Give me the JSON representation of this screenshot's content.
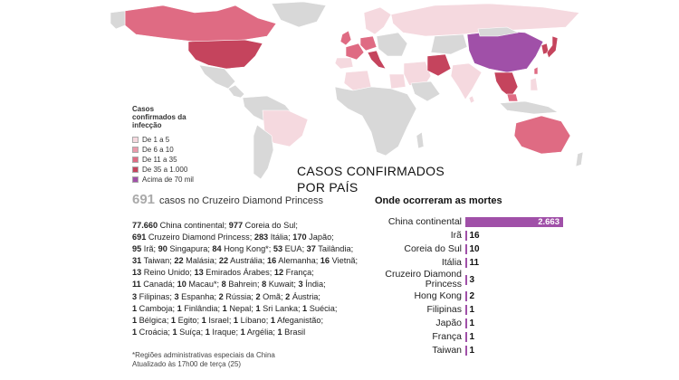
{
  "colors": {
    "ocean": "#ffffff",
    "land_no_cases": "#d8d8d8",
    "border": "#ffffff",
    "c1_5": "#f5d9df",
    "c6_10": "#ea9aab",
    "c11_35": "#df6b83",
    "c35_1000": "#c5445d",
    "c70k": "#a050a8"
  },
  "legend": {
    "title": "Casos confirmados da infecção",
    "items": [
      {
        "label": "De 1 a 5",
        "color": "#f5d9df"
      },
      {
        "label": "De 6 a 10",
        "color": "#ea9aab"
      },
      {
        "label": "De 11 a 35",
        "color": "#df6b83"
      },
      {
        "label": "De 35 a 1.000",
        "color": "#c5445d"
      },
      {
        "label": "Acima de 70 mil",
        "color": "#a050a8"
      }
    ]
  },
  "heading": {
    "line1": "CASOS CONFIRMADOS",
    "line2": "POR PAÍS"
  },
  "cruise": {
    "number": "691",
    "label": "casos no Cruzeiro Diamond Princess"
  },
  "cases_list": [
    {
      "n": "77.660",
      "c": "China continental"
    },
    {
      "n": "977",
      "c": "Coreia do Sul"
    },
    {
      "n": "691",
      "c": "Cruzeiro Diamond Princess"
    },
    {
      "n": "283",
      "c": "Itália"
    },
    {
      "n": "170",
      "c": "Japão"
    },
    {
      "n": "95",
      "c": "Irã"
    },
    {
      "n": "90",
      "c": "Singapura"
    },
    {
      "n": "84",
      "c": "Hong Kong*"
    },
    {
      "n": "53",
      "c": "EUA"
    },
    {
      "n": "37",
      "c": "Tailândia"
    },
    {
      "n": "31",
      "c": "Taiwan"
    },
    {
      "n": "22",
      "c": "Malásia"
    },
    {
      "n": "22",
      "c": "Austrália"
    },
    {
      "n": "16",
      "c": "Alemanha"
    },
    {
      "n": "16",
      "c": "Vietnã"
    },
    {
      "n": "13",
      "c": "Reino Unido"
    },
    {
      "n": "13",
      "c": "Emirados Árabes"
    },
    {
      "n": "12",
      "c": "França"
    },
    {
      "n": "11",
      "c": "Canadá"
    },
    {
      "n": "10",
      "c": "Macau*"
    },
    {
      "n": "8",
      "c": "Bahrein"
    },
    {
      "n": "8",
      "c": "Kuwait"
    },
    {
      "n": "3",
      "c": "Índia"
    },
    {
      "n": "3",
      "c": "Filipinas"
    },
    {
      "n": "3",
      "c": "Espanha"
    },
    {
      "n": "2",
      "c": "Rússia"
    },
    {
      "n": "2",
      "c": "Omã"
    },
    {
      "n": "2",
      "c": "Áustria"
    },
    {
      "n": "1",
      "c": "Camboja"
    },
    {
      "n": "1",
      "c": "Finlândia"
    },
    {
      "n": "1",
      "c": "Nepal"
    },
    {
      "n": "1",
      "c": "Sri Lanka"
    },
    {
      "n": "1",
      "c": "Suécia"
    },
    {
      "n": "1",
      "c": "Bélgica"
    },
    {
      "n": "1",
      "c": "Egito"
    },
    {
      "n": "1",
      "c": "Israel"
    },
    {
      "n": "1",
      "c": "Líbano"
    },
    {
      "n": "1",
      "c": "Afeganistão"
    },
    {
      "n": "1",
      "c": "Croácia"
    },
    {
      "n": "1",
      "c": "Suíça"
    },
    {
      "n": "1",
      "c": "Iraque"
    },
    {
      "n": "1",
      "c": "Argélia"
    },
    {
      "n": "1",
      "c": "Brasil"
    }
  ],
  "footnote": {
    "line1": "*Regiões administrativas especiais da China",
    "line2": "Atualizado às 17h00 de terça (25)"
  },
  "deaths": {
    "title": "Onde ocorreram as mortes",
    "rows": [
      {
        "label": "China continental",
        "value": 2663,
        "display": "2.663"
      },
      {
        "label": "Irã",
        "value": 16,
        "display": "16"
      },
      {
        "label": "Coreia do Sul",
        "value": 10,
        "display": "10"
      },
      {
        "label": "Itália",
        "value": 11,
        "display": "11"
      },
      {
        "label": "Cruzeiro Diamond Princess",
        "value": 3,
        "display": "3"
      },
      {
        "label": "Hong Kong",
        "value": 2,
        "display": "2"
      },
      {
        "label": "Filipinas",
        "value": 1,
        "display": "1"
      },
      {
        "label": "Japão",
        "value": 1,
        "display": "1"
      },
      {
        "label": "França",
        "value": 1,
        "display": "1"
      },
      {
        "label": "Taiwan",
        "value": 1,
        "display": "1"
      }
    ]
  }
}
